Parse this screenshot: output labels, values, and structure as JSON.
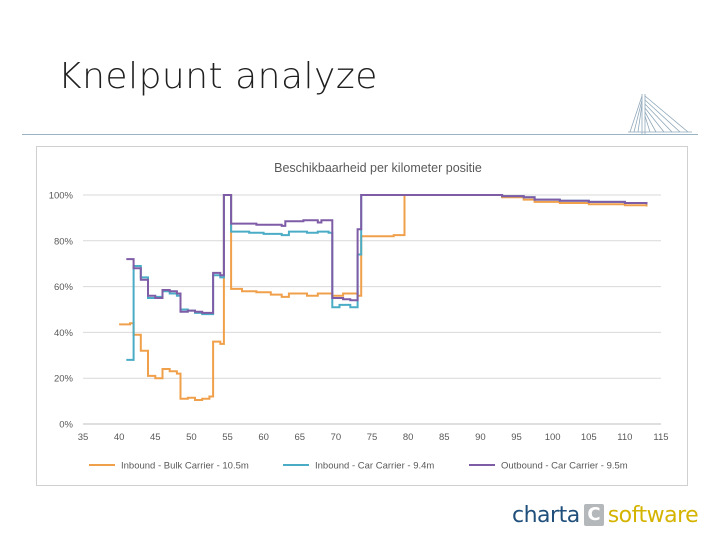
{
  "slide": {
    "title": "Knelpunt analyze"
  },
  "brand": {
    "part1": "charta",
    "mark": "C",
    "part2": "software",
    "colors": {
      "part1": "#1f4f7a",
      "mark": "#b5b8bb",
      "part2": "#d4b400"
    },
    "icon": "bridge-icon"
  },
  "chart_data": {
    "type": "line",
    "step": true,
    "title": "Beschikbaarheid per kilometer positie",
    "xlabel": "",
    "ylabel": "",
    "xlim": [
      35,
      115
    ],
    "ylim": [
      0,
      100
    ],
    "x_ticks": [
      35,
      40,
      45,
      50,
      55,
      60,
      65,
      70,
      75,
      80,
      85,
      90,
      95,
      100,
      105,
      110,
      115
    ],
    "y_ticks": [
      0,
      20,
      40,
      60,
      80,
      100
    ],
    "y_tick_labels": [
      "0%",
      "20%",
      "40%",
      "60%",
      "80%",
      "100%"
    ],
    "grid": {
      "horizontal": true,
      "vertical": false
    },
    "legend": "bottom",
    "series": [
      {
        "name": "Inbound - Bulk Carrier - 10.5m",
        "color": "#f0a04b",
        "points": [
          [
            40.0,
            43.5
          ],
          [
            41.5,
            44
          ],
          [
            42.0,
            39
          ],
          [
            43.0,
            32
          ],
          [
            44.0,
            21
          ],
          [
            45.0,
            20
          ],
          [
            46.0,
            24
          ],
          [
            47.0,
            23
          ],
          [
            48.0,
            22
          ],
          [
            48.5,
            11
          ],
          [
            49.5,
            11.5
          ],
          [
            50.5,
            10.5
          ],
          [
            51.5,
            11
          ],
          [
            52.5,
            12
          ],
          [
            53.0,
            36
          ],
          [
            54.0,
            35
          ],
          [
            54.5,
            100
          ],
          [
            55.5,
            59
          ],
          [
            57.0,
            58
          ],
          [
            59.0,
            57.5
          ],
          [
            61.0,
            56.5
          ],
          [
            62.5,
            55.5
          ],
          [
            63.5,
            57
          ],
          [
            66.0,
            56
          ],
          [
            67.5,
            57
          ],
          [
            69.5,
            56
          ],
          [
            71.0,
            57
          ],
          [
            73.0,
            56
          ],
          [
            73.5,
            82
          ],
          [
            78.0,
            82.5
          ],
          [
            79.5,
            100
          ],
          [
            90.0,
            100
          ],
          [
            93.0,
            99
          ],
          [
            96.0,
            98
          ],
          [
            97.5,
            97
          ],
          [
            101.0,
            96.5
          ],
          [
            105.0,
            96
          ],
          [
            110.0,
            95.5
          ],
          [
            113.0,
            95
          ]
        ]
      },
      {
        "name": "Inbound - Car Carrier - 9.4m",
        "color": "#4bacc6",
        "points": [
          [
            41.0,
            28
          ],
          [
            42.0,
            69
          ],
          [
            43.0,
            64
          ],
          [
            44.0,
            55
          ],
          [
            45.0,
            55.5
          ],
          [
            46.0,
            58
          ],
          [
            47.0,
            57
          ],
          [
            48.0,
            56
          ],
          [
            48.5,
            50
          ],
          [
            49.5,
            49.5
          ],
          [
            50.5,
            48.5
          ],
          [
            51.5,
            48
          ],
          [
            53.0,
            65
          ],
          [
            54.0,
            64
          ],
          [
            54.5,
            100
          ],
          [
            55.5,
            84
          ],
          [
            58.0,
            83.5
          ],
          [
            60.0,
            83
          ],
          [
            62.5,
            82.5
          ],
          [
            63.5,
            84
          ],
          [
            66.0,
            83.5
          ],
          [
            67.5,
            84
          ],
          [
            69.0,
            83.5
          ],
          [
            69.5,
            51
          ],
          [
            70.5,
            52
          ],
          [
            72.0,
            51
          ],
          [
            73.0,
            74
          ],
          [
            73.5,
            100
          ],
          [
            90.0,
            100
          ],
          [
            93.0,
            99.5
          ],
          [
            96.0,
            99
          ],
          [
            97.5,
            98
          ],
          [
            101.0,
            97.5
          ],
          [
            105.0,
            97
          ],
          [
            110.0,
            96.5
          ],
          [
            113.0,
            96
          ]
        ]
      },
      {
        "name": "Outbound - Car Carrier - 9.5m",
        "color": "#7f5ca6",
        "points": [
          [
            41.0,
            72
          ],
          [
            42.0,
            68
          ],
          [
            43.0,
            63
          ],
          [
            44.0,
            56
          ],
          [
            45.0,
            55
          ],
          [
            46.0,
            58.5
          ],
          [
            47.0,
            58
          ],
          [
            48.0,
            57
          ],
          [
            48.5,
            49
          ],
          [
            49.5,
            49.5
          ],
          [
            50.5,
            49
          ],
          [
            51.5,
            48.5
          ],
          [
            53.0,
            66
          ],
          [
            54.0,
            65
          ],
          [
            54.5,
            100
          ],
          [
            55.5,
            87.5
          ],
          [
            59.0,
            87
          ],
          [
            62.5,
            86.5
          ],
          [
            63.0,
            88.5
          ],
          [
            65.5,
            89
          ],
          [
            67.5,
            88
          ],
          [
            68.0,
            89
          ],
          [
            69.5,
            55
          ],
          [
            71.0,
            54.5
          ],
          [
            72.0,
            54
          ],
          [
            73.0,
            85
          ],
          [
            73.5,
            100
          ],
          [
            90.0,
            100
          ],
          [
            93.0,
            99.5
          ],
          [
            96.0,
            99
          ],
          [
            97.5,
            98
          ],
          [
            101.0,
            97.5
          ],
          [
            105.0,
            97
          ],
          [
            110.0,
            96.5
          ],
          [
            113.0,
            96
          ]
        ]
      }
    ]
  }
}
